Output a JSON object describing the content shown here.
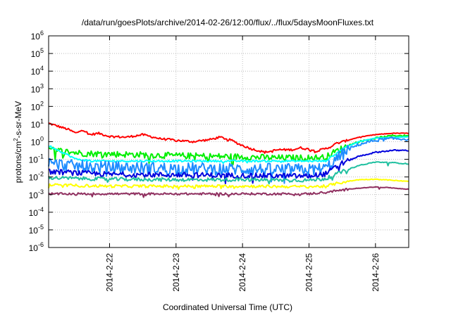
{
  "chart_data": {
    "type": "line",
    "title": "/data/run/goesPlots/archive/2014-02-26/12:00/flux/../flux/5daysMoonFluxes.txt",
    "xlabel": "Coordinated Universal Time (UTC)",
    "ylabel_parts": [
      "protons/cm",
      "2",
      "-s-sr-MeV"
    ],
    "yscale": "log",
    "ylim": [
      1e-06,
      1000000.0
    ],
    "y_ticks": [
      {
        "value": 1e-06,
        "base": "10",
        "exp": "-6"
      },
      {
        "value": 1e-05,
        "base": "10",
        "exp": "-5"
      },
      {
        "value": 0.0001,
        "base": "10",
        "exp": "-4"
      },
      {
        "value": 0.001,
        "base": "10",
        "exp": "-3"
      },
      {
        "value": 0.01,
        "base": "10",
        "exp": "-2"
      },
      {
        "value": 0.1,
        "base": "10",
        "exp": "-1"
      },
      {
        "value": 1,
        "base": "10",
        "exp": "0"
      },
      {
        "value": 10,
        "base": "10",
        "exp": "1"
      },
      {
        "value": 100,
        "base": "10",
        "exp": "2"
      },
      {
        "value": 1000,
        "base": "10",
        "exp": "3"
      },
      {
        "value": 10000,
        "base": "10",
        "exp": "4"
      },
      {
        "value": 100000,
        "base": "10",
        "exp": "5"
      },
      {
        "value": 1000000,
        "base": "10",
        "exp": "6"
      }
    ],
    "xlim": [
      "2014-02-21 02:00",
      "2014-02-26 12:00"
    ],
    "x_ticks": [
      {
        "value": "2014-02-22 00:00",
        "label": "2014-2-22"
      },
      {
        "value": "2014-02-23 00:00",
        "label": "2014-2-23"
      },
      {
        "value": "2014-02-24 00:00",
        "label": "2014-2-24"
      },
      {
        "value": "2014-02-25 00:00",
        "label": "2014-2-25"
      },
      {
        "value": "2014-02-26 00:00",
        "label": "2014-2-26"
      }
    ],
    "grid": true,
    "series": [
      {
        "color": "#ff0000",
        "noise": 0.06,
        "pts": [
          [
            "2014-02-21 02:00",
            11
          ],
          [
            "2014-02-21 06:00",
            7
          ],
          [
            "2014-02-21 09:00",
            5
          ],
          [
            "2014-02-21 12:00",
            3
          ],
          [
            "2014-02-21 14:00",
            5
          ],
          [
            "2014-02-21 17:00",
            2.5
          ],
          [
            "2014-02-21 20:00",
            3
          ],
          [
            "2014-02-22 00:00",
            2
          ],
          [
            "2014-02-22 06:00",
            1.8
          ],
          [
            "2014-02-22 12:00",
            2.5
          ],
          [
            "2014-02-22 18:00",
            1.5
          ],
          [
            "2014-02-23 00:00",
            1.2
          ],
          [
            "2014-02-23 06:00",
            1.0
          ],
          [
            "2014-02-23 12:00",
            1.3
          ],
          [
            "2014-02-23 16:00",
            1.8
          ],
          [
            "2014-02-23 20:00",
            1.2
          ],
          [
            "2014-02-23 23:00",
            0.7
          ],
          [
            "2014-02-24 03:00",
            0.4
          ],
          [
            "2014-02-24 08:00",
            0.25
          ],
          [
            "2014-02-24 13:00",
            0.35
          ],
          [
            "2014-02-24 18:00",
            0.35
          ],
          [
            "2014-02-24 21:00",
            0.45
          ],
          [
            "2014-02-25 03:00",
            0.3
          ],
          [
            "2014-02-25 07:00",
            0.45
          ],
          [
            "2014-02-25 10:00",
            0.8
          ],
          [
            "2014-02-25 14:00",
            1.2
          ],
          [
            "2014-02-25 18:00",
            1.8
          ],
          [
            "2014-02-26 00:00",
            2.5
          ],
          [
            "2014-02-26 06:00",
            3.0
          ],
          [
            "2014-02-26 12:00",
            3.0
          ]
        ]
      },
      {
        "color": "#00ee00",
        "noise": 0.18,
        "pts": [
          [
            "2014-02-21 02:00",
            0.35
          ],
          [
            "2014-02-21 08:00",
            0.28
          ],
          [
            "2014-02-21 14:00",
            0.22
          ],
          [
            "2014-02-22 00:00",
            0.2
          ],
          [
            "2014-02-22 12:00",
            0.18
          ],
          [
            "2014-02-23 00:00",
            0.16
          ],
          [
            "2014-02-23 12:00",
            0.15
          ],
          [
            "2014-02-24 00:00",
            0.14
          ],
          [
            "2014-02-24 12:00",
            0.12
          ],
          [
            "2014-02-25 00:00",
            0.12
          ],
          [
            "2014-02-25 06:00",
            0.13
          ],
          [
            "2014-02-25 09:00",
            0.25
          ],
          [
            "2014-02-25 14:00",
            0.6
          ],
          [
            "2014-02-25 18:00",
            1.0
          ],
          [
            "2014-02-26 00:00",
            1.6
          ],
          [
            "2014-02-26 06:00",
            2.2
          ],
          [
            "2014-02-26 12:00",
            2.2
          ]
        ]
      },
      {
        "color": "#00ffff",
        "noise": 0.05,
        "pts": [
          [
            "2014-02-21 02:00",
            0.6
          ],
          [
            "2014-02-21 06:00",
            0.3
          ],
          [
            "2014-02-21 12:00",
            0.1
          ],
          [
            "2014-02-21 18:00",
            0.08
          ],
          [
            "2014-02-25 06:00",
            0.08
          ],
          [
            "2014-02-25 12:00",
            0.4
          ],
          [
            "2014-02-25 18:00",
            1.0
          ],
          [
            "2014-02-26 00:00",
            1.6
          ],
          [
            "2014-02-26 12:00",
            1.9
          ]
        ]
      },
      {
        "color": "#1e8cff",
        "noise": 0.35,
        "pts": [
          [
            "2014-02-21 02:00",
            0.06
          ],
          [
            "2014-02-21 12:00",
            0.04
          ],
          [
            "2014-02-22 00:00",
            0.035
          ],
          [
            "2014-02-23 00:00",
            0.03
          ],
          [
            "2014-02-24 00:00",
            0.028
          ],
          [
            "2014-02-25 00:00",
            0.025
          ],
          [
            "2014-02-25 06:00",
            0.03
          ],
          [
            "2014-02-25 10:00",
            0.1
          ],
          [
            "2014-02-25 14:00",
            0.35
          ],
          [
            "2014-02-25 18:00",
            0.7
          ],
          [
            "2014-02-26 00:00",
            1.2
          ],
          [
            "2014-02-26 06:00",
            1.5
          ],
          [
            "2014-02-26 12:00",
            1.4
          ]
        ]
      },
      {
        "color": "#0000dd",
        "noise": 0.15,
        "pts": [
          [
            "2014-02-21 02:00",
            0.02
          ],
          [
            "2014-02-22 00:00",
            0.014
          ],
          [
            "2014-02-23 00:00",
            0.013
          ],
          [
            "2014-02-24 00:00",
            0.012
          ],
          [
            "2014-02-25 00:00",
            0.011
          ],
          [
            "2014-02-25 06:00",
            0.015
          ],
          [
            "2014-02-25 12:00",
            0.06
          ],
          [
            "2014-02-25 18:00",
            0.15
          ],
          [
            "2014-02-26 00:00",
            0.25
          ],
          [
            "2014-02-26 06:00",
            0.32
          ],
          [
            "2014-02-26 12:00",
            0.32
          ]
        ]
      },
      {
        "color": "#20c0a0",
        "noise": 0.1,
        "pts": [
          [
            "2014-02-21 02:00",
            0.009
          ],
          [
            "2014-02-22 00:00",
            0.0075
          ],
          [
            "2014-02-23 00:00",
            0.007
          ],
          [
            "2014-02-24 00:00",
            0.007
          ],
          [
            "2014-02-25 00:00",
            0.0065
          ],
          [
            "2014-02-25 06:00",
            0.008
          ],
          [
            "2014-02-25 12:00",
            0.02
          ],
          [
            "2014-02-25 18:00",
            0.045
          ],
          [
            "2014-02-26 00:00",
            0.07
          ],
          [
            "2014-02-26 06:00",
            0.065
          ],
          [
            "2014-02-26 12:00",
            0.055
          ]
        ]
      },
      {
        "color": "#ffff00",
        "noise": 0.08,
        "pts": [
          [
            "2014-02-21 02:00",
            0.0035
          ],
          [
            "2014-02-22 00:00",
            0.003
          ],
          [
            "2014-02-23 00:00",
            0.003
          ],
          [
            "2014-02-24 00:00",
            0.003
          ],
          [
            "2014-02-25 00:00",
            0.0028
          ],
          [
            "2014-02-25 06:00",
            0.003
          ],
          [
            "2014-02-25 12:00",
            0.005
          ],
          [
            "2014-02-25 18:00",
            0.007
          ],
          [
            "2014-02-26 00:00",
            0.0075
          ],
          [
            "2014-02-26 06:00",
            0.0065
          ],
          [
            "2014-02-26 12:00",
            0.0055
          ]
        ]
      },
      {
        "color": "#903060",
        "noise": 0.06,
        "pts": [
          [
            "2014-02-21 02:00",
            0.0011
          ],
          [
            "2014-02-22 00:00",
            0.0011
          ],
          [
            "2014-02-23 00:00",
            0.0011
          ],
          [
            "2014-02-24 00:00",
            0.0011
          ],
          [
            "2014-02-25 00:00",
            0.0011
          ],
          [
            "2014-02-25 08:00",
            0.0015
          ],
          [
            "2014-02-25 16:00",
            0.0022
          ],
          [
            "2014-02-26 00:00",
            0.0027
          ],
          [
            "2014-02-26 06:00",
            0.0024
          ],
          [
            "2014-02-26 12:00",
            0.002
          ]
        ]
      }
    ]
  }
}
